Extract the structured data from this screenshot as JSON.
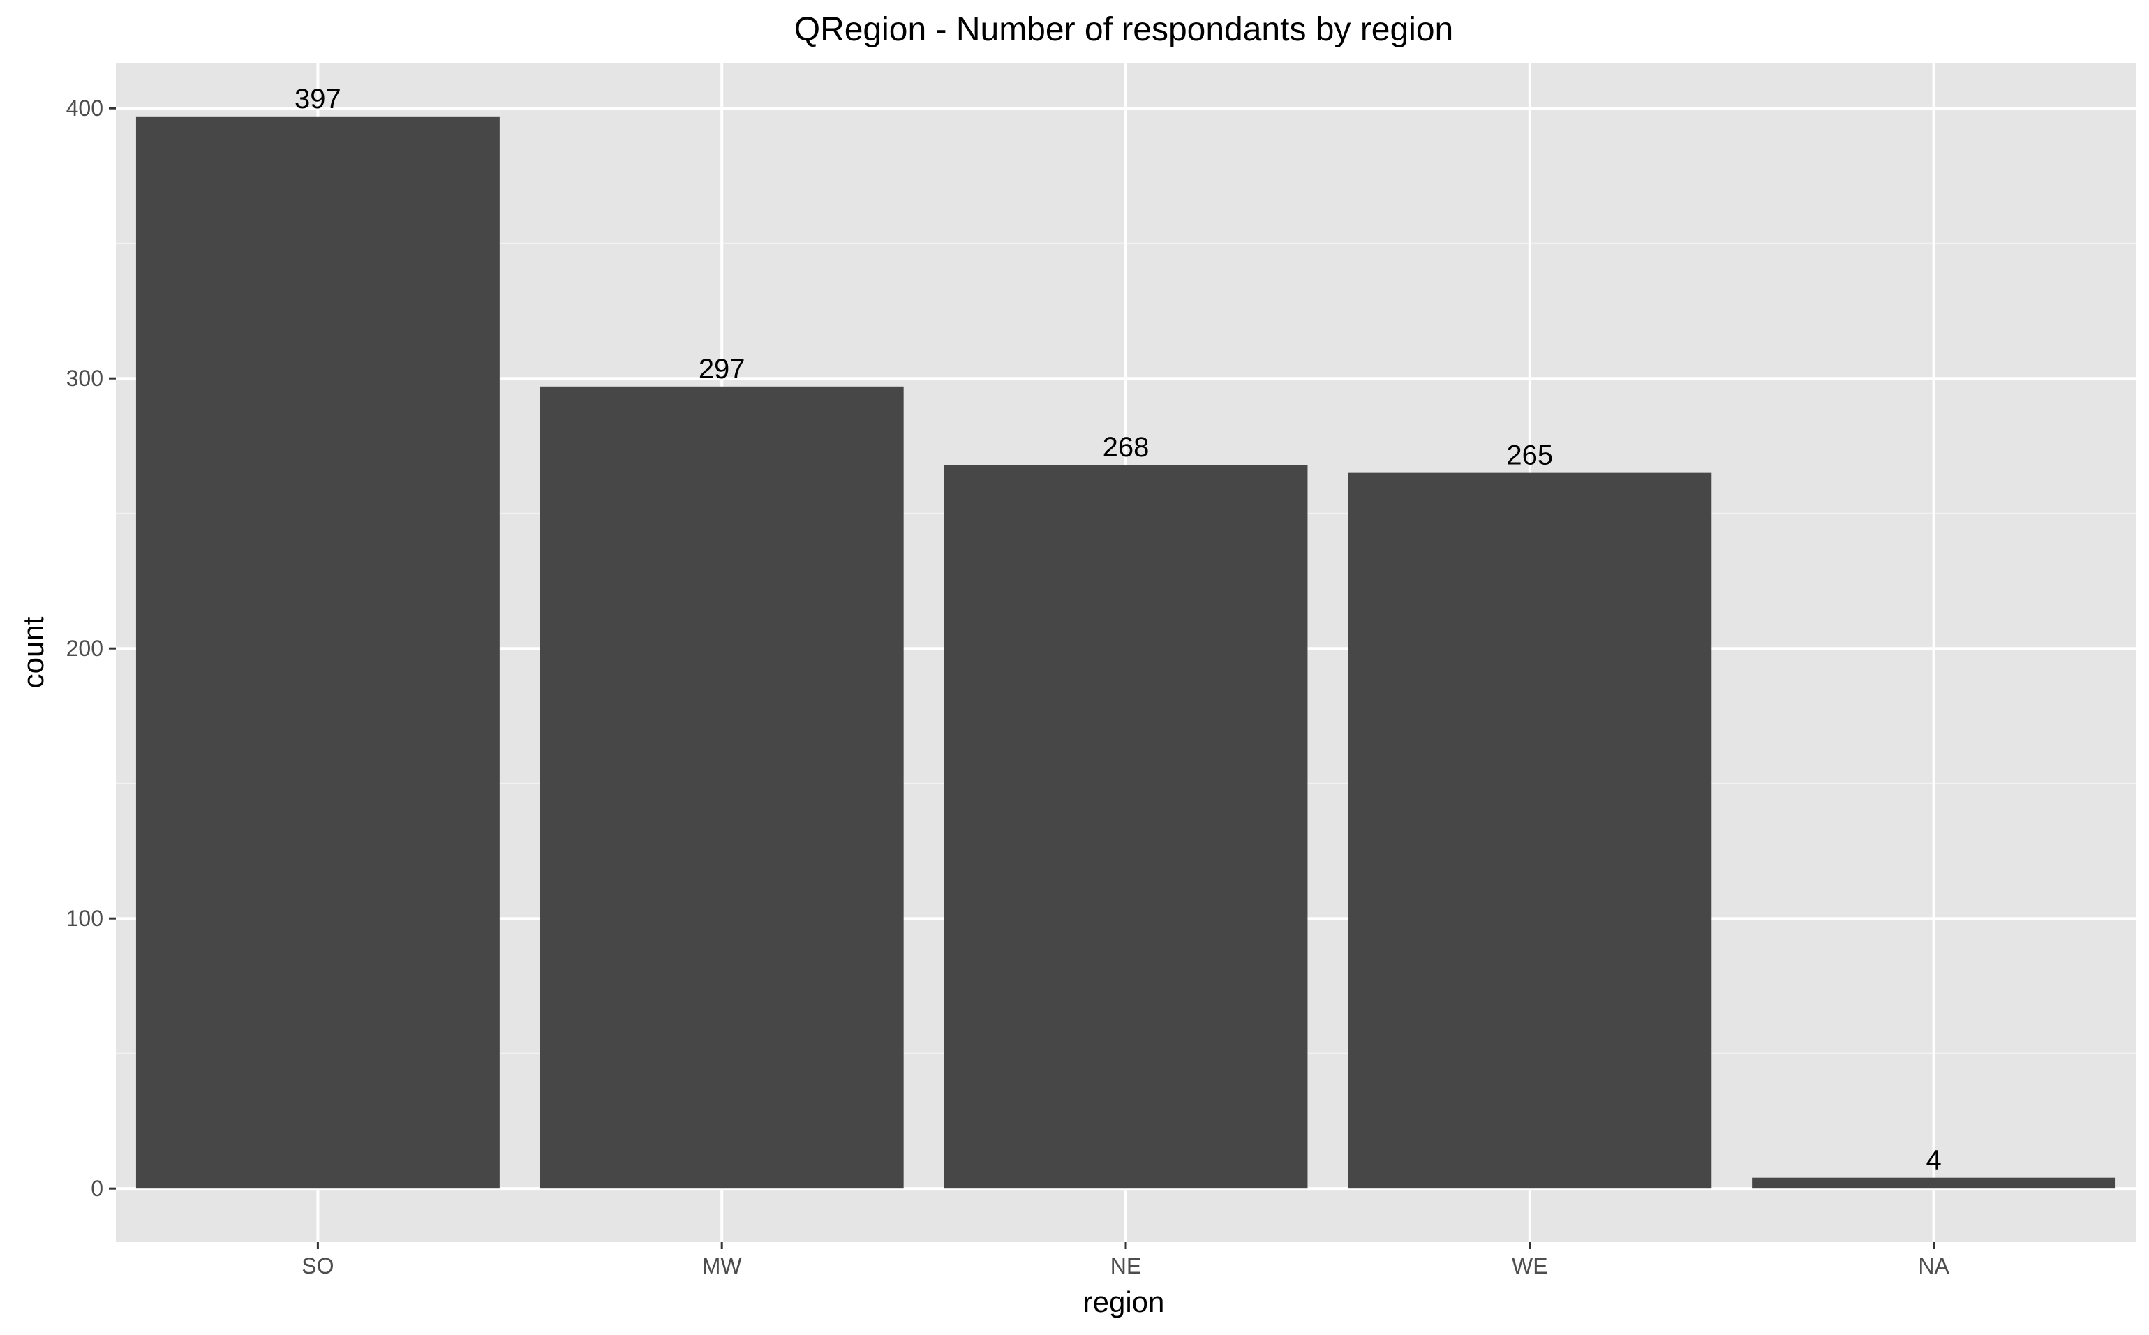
{
  "chart_data": {
    "type": "bar",
    "title": "QRegion - Number of respondants by region",
    "xlabel": "region",
    "ylabel": "count",
    "categories": [
      "SO",
      "MW",
      "NE",
      "WE",
      "NA"
    ],
    "values": [
      397,
      297,
      268,
      265,
      4
    ],
    "data_labels": [
      "397",
      "297",
      "268",
      "265",
      "4"
    ],
    "ylim": [
      -19.85,
      416.85
    ],
    "y_ticks": [
      0,
      100,
      200,
      300,
      400
    ],
    "y_tick_labels": [
      "0",
      "100",
      "200",
      "300",
      "400"
    ],
    "grid": true,
    "legend": "none",
    "colors": {
      "bar": "#474747",
      "panel_background": "#e5e5e5",
      "grid_major": "#ffffff",
      "grid_minor": "#f2f2f2",
      "tick_text": "#4d4d4d",
      "text": "#000000"
    }
  }
}
